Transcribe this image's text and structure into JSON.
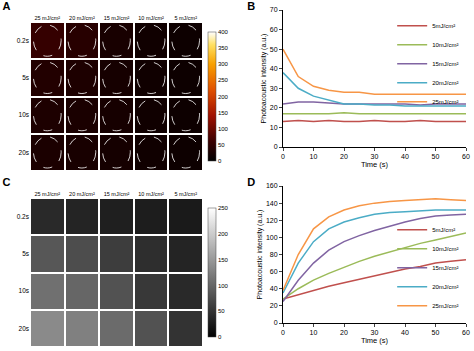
{
  "chart_data": [
    {
      "type": "heatmap",
      "title": "A",
      "categories": [
        "25 mJ/cm²",
        "20 mJ/cm²",
        "15 mJ/cm²",
        "10 mJ/cm²",
        "5 mJ/cm²"
      ],
      "rows": [
        "0.2s",
        "5s",
        "10s",
        "20s"
      ],
      "cells": [
        [
          55,
          40,
          25,
          17,
          13
        ],
        [
          35,
          30,
          23,
          17,
          13
        ],
        [
          30,
          27,
          23,
          17,
          13
        ],
        [
          28,
          25,
          22,
          17,
          13
        ]
      ],
      "colorbar_range": [
        0,
        400
      ],
      "colorbar_ticks": [
        0,
        50,
        100,
        150,
        200,
        250,
        300,
        350,
        400
      ],
      "marker": "circle"
    },
    {
      "type": "line",
      "title": "B",
      "x_label": "Time (s)",
      "y_label": "Photoacoustic intensity (a.u.)",
      "x": [
        0,
        5,
        10,
        15,
        20,
        25,
        30,
        35,
        40,
        45,
        50,
        55,
        60
      ],
      "series": [
        {
          "name": "5mJ/cm²",
          "color": "#c0504d",
          "values": [
            13,
            13.5,
            13,
            13.5,
            13,
            13,
            13.5,
            13,
            13,
            13.5,
            13,
            13,
            13
          ]
        },
        {
          "name": "10mJ/cm²",
          "color": "#9bbb59",
          "values": [
            17,
            17,
            17,
            17,
            17.5,
            17,
            17,
            17,
            17,
            17,
            17,
            17,
            17
          ]
        },
        {
          "name": "15mJ/cm²",
          "color": "#8064a2",
          "values": [
            22,
            23,
            23,
            22.5,
            22,
            22,
            22,
            22,
            22,
            21.5,
            22,
            22,
            22
          ]
        },
        {
          "name": "20mJ/cm²",
          "color": "#4bacc6",
          "values": [
            38,
            30,
            26,
            24,
            22,
            22,
            21.5,
            21.5,
            21,
            21,
            21,
            21,
            21
          ]
        },
        {
          "name": "25mJ/cm²",
          "color": "#f79646",
          "values": [
            50,
            36,
            31,
            29,
            28,
            28,
            27,
            27,
            27,
            27,
            27,
            27,
            27
          ]
        }
      ],
      "xlim": [
        0,
        60
      ],
      "xticks": [
        0,
        10,
        20,
        30,
        40,
        50,
        60
      ],
      "ylim": [
        0,
        70
      ],
      "yticks": [
        0,
        10,
        20,
        30,
        40,
        50,
        60,
        70
      ],
      "grid": false,
      "legend": "upper right"
    },
    {
      "type": "heatmap",
      "title": "C",
      "categories": [
        "25 mJ/cm²",
        "20 mJ/cm²",
        "15 mJ/cm²",
        "10 mJ/cm²",
        "5 mJ/cm²"
      ],
      "rows": [
        "0.2s",
        "5s",
        "10s",
        "20s"
      ],
      "cells": [
        [
          40,
          35,
          30,
          28,
          25
        ],
        [
          85,
          75,
          60,
          45,
          35
        ],
        [
          110,
          100,
          80,
          55,
          40
        ],
        [
          135,
          125,
          105,
          80,
          50
        ]
      ],
      "colorbar_range": [
        0,
        250
      ],
      "colorbar_ticks": [
        0,
        50,
        100,
        150,
        200,
        250
      ]
    },
    {
      "type": "line",
      "title": "D",
      "x_label": "Time (s)",
      "y_label": "Photoacoustic intensity (a.u.)",
      "x": [
        0,
        5,
        10,
        15,
        20,
        25,
        30,
        35,
        40,
        45,
        50,
        55,
        60
      ],
      "series": [
        {
          "name": "5mJ/cm²",
          "color": "#c0504d",
          "values": [
            28,
            33,
            38,
            43,
            47,
            51,
            55,
            59,
            63,
            66,
            70,
            72,
            74
          ]
        },
        {
          "name": "10mJ/cm²",
          "color": "#9bbb59",
          "values": [
            28,
            40,
            50,
            58,
            65,
            72,
            78,
            83,
            88,
            93,
            97,
            101,
            105
          ]
        },
        {
          "name": "15mJ/cm²",
          "color": "#8064a2",
          "values": [
            25,
            50,
            70,
            85,
            95,
            102,
            108,
            113,
            118,
            122,
            125,
            126,
            127
          ]
        },
        {
          "name": "20mJ/cm²",
          "color": "#4bacc6",
          "values": [
            35,
            70,
            95,
            110,
            118,
            123,
            127,
            129,
            130,
            131,
            132,
            132,
            132
          ]
        },
        {
          "name": "25mJ/cm²",
          "color": "#f79646",
          "values": [
            38,
            80,
            110,
            124,
            132,
            137,
            140,
            142,
            143,
            144,
            145,
            144,
            143
          ]
        }
      ],
      "xlim": [
        0,
        60
      ],
      "xticks": [
        0,
        10,
        20,
        30,
        40,
        50,
        60
      ],
      "ylim": [
        0,
        160
      ],
      "yticks": [
        0,
        20,
        40,
        60,
        80,
        100,
        120,
        140,
        160
      ],
      "grid": false,
      "legend": "lower right"
    }
  ]
}
